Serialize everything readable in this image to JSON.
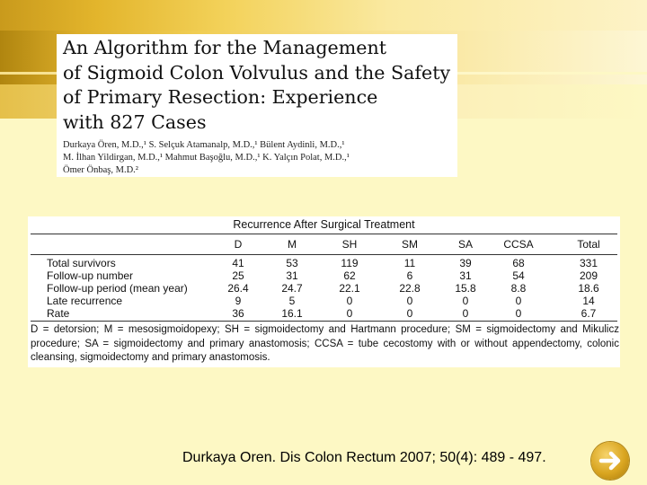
{
  "paper": {
    "title": "An Algorithm for the Management\nof Sigmoid Colon Volvulus and the Safety\nof Primary Resection: Experience\nwith 827 Cases",
    "authors": "Durkaya Ören, M.D.,¹ S. Selçuk Atamanalp, M.D.,¹ Bülent Aydinli, M.D.,¹\nM. İlhan Yildirgan, M.D.,¹ Mahmut Başoğlu, M.D.,¹ K. Yalçın Polat, M.D.,¹\nÖmer Önbaş, M.D.²"
  },
  "table": {
    "caption": "Recurrence After Surgical Treatment",
    "headers": [
      "D",
      "M",
      "SH",
      "SM",
      "SA",
      "CCSA",
      "Total"
    ],
    "rows": [
      {
        "label": "Total survivors",
        "values": [
          "41",
          "53",
          "119",
          "11",
          "39",
          "68",
          "331"
        ]
      },
      {
        "label": "Follow-up number",
        "values": [
          "25",
          "31",
          "62",
          "6",
          "31",
          "54",
          "209"
        ]
      },
      {
        "label": "Follow-up period (mean year)",
        "values": [
          "26.4",
          "24.7",
          "22.1",
          "22.8",
          "15.8",
          "8.8",
          "18.6"
        ]
      },
      {
        "label": "Late recurrence",
        "values": [
          "9",
          "5",
          "0",
          "0",
          "0",
          "0",
          "14"
        ]
      },
      {
        "label": "Rate",
        "values": [
          "36",
          "16.1",
          "0",
          "0",
          "0",
          "0",
          "6.7"
        ]
      }
    ],
    "footnote": "D = detorsion; M = mesosigmoidopexy; SH = sigmoidectomy and Hartmann procedure; SM = sigmoidectomy and Mikulicz procedure; SA = sigmoidectomy and primary anastomosis; CCSA = tube cecostomy with or without appendectomy, colonic cleansing, sigmoidectomy and primary anastomosis."
  },
  "citation": "Durkaya Oren. Dis Colon Rectum 2007; 50(4): 489 - 497.",
  "next_button": {
    "icon": "arrow-right-icon"
  }
}
